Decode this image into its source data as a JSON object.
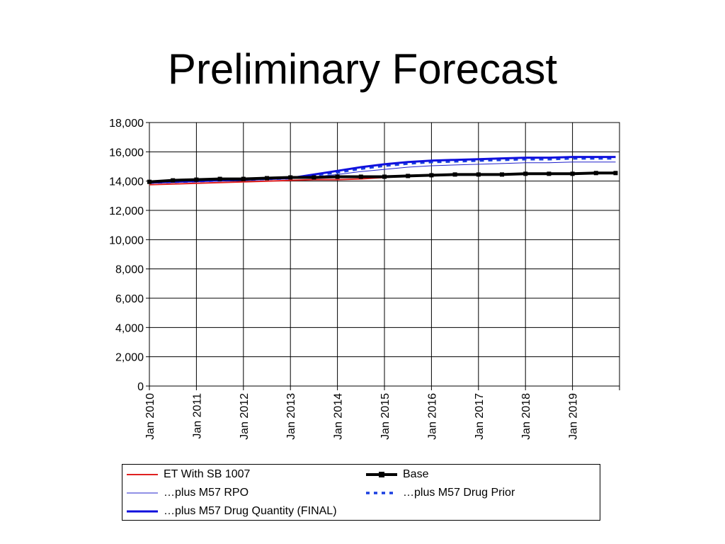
{
  "slide": {
    "title": "Preliminary Forecast"
  },
  "chart_data": {
    "type": "line",
    "title": "",
    "xlabel": "",
    "ylabel": "",
    "ylim": [
      0,
      18000
    ],
    "yticks": [
      0,
      2000,
      4000,
      6000,
      8000,
      10000,
      12000,
      14000,
      16000,
      18000
    ],
    "ytick_labels": [
      "0",
      "2,000",
      "4,000",
      "6,000",
      "8,000",
      "10,000",
      "12,000",
      "14,000",
      "16,000",
      "18,000"
    ],
    "xlim": [
      "2010-01",
      "2019-12"
    ],
    "xtick_labels": [
      "Jan 2010",
      "Jan 2011",
      "Jan 2012",
      "Jan 2013",
      "Jan 2014",
      "Jan 2015",
      "Jan 2016",
      "Jan 2017",
      "Jan 2018",
      "Jan 2019"
    ],
    "grid": true,
    "legend_position": "bottom",
    "x": [
      "2010-01",
      "2010-07",
      "2011-01",
      "2011-07",
      "2012-01",
      "2012-07",
      "2013-01",
      "2013-07",
      "2014-01",
      "2014-07",
      "2015-01",
      "2015-07",
      "2016-01",
      "2016-07",
      "2017-01",
      "2017-07",
      "2018-01",
      "2018-07",
      "2019-01",
      "2019-07",
      "2019-12"
    ],
    "series": [
      {
        "name": "ET With SB 1007",
        "color": "#e02020",
        "style": "solid-thin",
        "values": [
          13750,
          13800,
          13850,
          13900,
          13950,
          14000,
          14050,
          14100,
          14100,
          14150,
          14250,
          14350,
          null,
          null,
          null,
          null,
          null,
          null,
          null,
          null,
          null
        ]
      },
      {
        "name": "Base",
        "color": "#000000",
        "style": "thick-marker",
        "values": [
          13950,
          14050,
          14100,
          14150,
          14150,
          14200,
          14250,
          14250,
          14300,
          14300,
          14300,
          14350,
          14400,
          14450,
          14450,
          14450,
          14500,
          14500,
          14500,
          14550,
          14550
        ]
      },
      {
        "name": "…plus M57 RPO",
        "color": "#2020cc",
        "style": "hairline",
        "values": [
          13900,
          13950,
          14000,
          14050,
          14100,
          14150,
          14200,
          14300,
          14450,
          14650,
          14800,
          14950,
          15050,
          15100,
          15150,
          15200,
          15250,
          15250,
          15300,
          15300,
          15300
        ]
      },
      {
        "name": "…plus M57 Drug Prior",
        "color": "#1a3fe0",
        "style": "dashed",
        "values": [
          13900,
          13950,
          14000,
          14050,
          14100,
          14150,
          14200,
          14400,
          14600,
          14850,
          15050,
          15200,
          15300,
          15350,
          15400,
          15450,
          15500,
          15500,
          15550,
          15550,
          15550
        ]
      },
      {
        "name": "…plus M57 Drug Quantity (FINAL)",
        "color": "#1010dd",
        "style": "thick",
        "values": [
          13900,
          13950,
          14000,
          14050,
          14100,
          14150,
          14200,
          14450,
          14700,
          14950,
          15150,
          15300,
          15400,
          15450,
          15500,
          15550,
          15600,
          15600,
          15650,
          15650,
          15650
        ]
      }
    ]
  }
}
